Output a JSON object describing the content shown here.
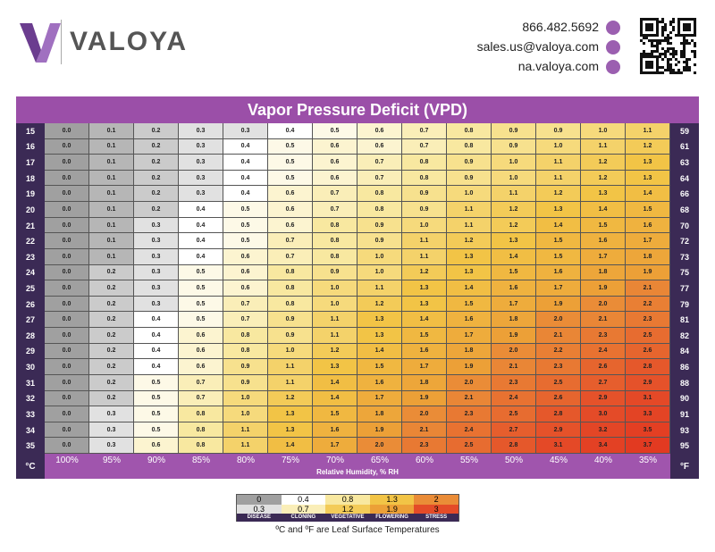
{
  "header": {
    "logo": "VALOYA",
    "phone": "866.482.5692",
    "email": "sales.us@valoya.com",
    "web": "na.valoya.com"
  },
  "table": {
    "title": "Vapor Pressure Deficit (VPD)",
    "corner_left": "°C",
    "corner_right": "°F",
    "x_label": "Relative Humidity, % RH",
    "columns": [
      "100%",
      "95%",
      "90%",
      "85%",
      "80%",
      "75%",
      "70%",
      "65%",
      "60%",
      "55%",
      "50%",
      "45%",
      "40%",
      "35%"
    ],
    "rows": [
      {
        "celsius": "15",
        "fahrenheit": "59",
        "values": [
          "0.0",
          "0.1",
          "0.2",
          "0.3",
          "0.3",
          "0.4",
          "0.5",
          "0.6",
          "0.7",
          "0.8",
          "0.9",
          "0.9",
          "1.0",
          "1.1"
        ]
      },
      {
        "celsius": "16",
        "fahrenheit": "61",
        "values": [
          "0.0",
          "0.1",
          "0.2",
          "0.3",
          "0.4",
          "0.5",
          "0.6",
          "0.6",
          "0.7",
          "0.8",
          "0.9",
          "1.0",
          "1.1",
          "1.2"
        ]
      },
      {
        "celsius": "17",
        "fahrenheit": "63",
        "values": [
          "0.0",
          "0.1",
          "0.2",
          "0.3",
          "0.4",
          "0.5",
          "0.6",
          "0.7",
          "0.8",
          "0.9",
          "1.0",
          "1.1",
          "1.2",
          "1.3"
        ]
      },
      {
        "celsius": "18",
        "fahrenheit": "64",
        "values": [
          "0.0",
          "0.1",
          "0.2",
          "0.3",
          "0.4",
          "0.5",
          "0.6",
          "0.7",
          "0.8",
          "0.9",
          "1.0",
          "1.1",
          "1.2",
          "1.3"
        ]
      },
      {
        "celsius": "19",
        "fahrenheit": "66",
        "values": [
          "0.0",
          "0.1",
          "0.2",
          "0.3",
          "0.4",
          "0.6",
          "0.7",
          "0.8",
          "0.9",
          "1.0",
          "1.1",
          "1.2",
          "1.3",
          "1.4"
        ]
      },
      {
        "celsius": "20",
        "fahrenheit": "68",
        "values": [
          "0.0",
          "0.1",
          "0.2",
          "0.4",
          "0.5",
          "0.6",
          "0.7",
          "0.8",
          "0.9",
          "1.1",
          "1.2",
          "1.3",
          "1.4",
          "1.5"
        ]
      },
      {
        "celsius": "21",
        "fahrenheit": "70",
        "values": [
          "0.0",
          "0.1",
          "0.3",
          "0.4",
          "0.5",
          "0.6",
          "0.8",
          "0.9",
          "1.0",
          "1.1",
          "1.2",
          "1.4",
          "1.5",
          "1.6"
        ]
      },
      {
        "celsius": "22",
        "fahrenheit": "72",
        "values": [
          "0.0",
          "0.1",
          "0.3",
          "0.4",
          "0.5",
          "0.7",
          "0.8",
          "0.9",
          "1.1",
          "1.2",
          "1.3",
          "1.5",
          "1.6",
          "1.7"
        ]
      },
      {
        "celsius": "23",
        "fahrenheit": "73",
        "values": [
          "0.0",
          "0.1",
          "0.3",
          "0.4",
          "0.6",
          "0.7",
          "0.8",
          "1.0",
          "1.1",
          "1.3",
          "1.4",
          "1.5",
          "1.7",
          "1.8"
        ]
      },
      {
        "celsius": "24",
        "fahrenheit": "75",
        "values": [
          "0.0",
          "0.2",
          "0.3",
          "0.5",
          "0.6",
          "0.8",
          "0.9",
          "1.0",
          "1.2",
          "1.3",
          "1.5",
          "1.6",
          "1.8",
          "1.9"
        ]
      },
      {
        "celsius": "25",
        "fahrenheit": "77",
        "values": [
          "0.0",
          "0.2",
          "0.3",
          "0.5",
          "0.6",
          "0.8",
          "1.0",
          "1.1",
          "1.3",
          "1.4",
          "1.6",
          "1.7",
          "1.9",
          "2.1"
        ]
      },
      {
        "celsius": "26",
        "fahrenheit": "79",
        "values": [
          "0.0",
          "0.2",
          "0.3",
          "0.5",
          "0.7",
          "0.8",
          "1.0",
          "1.2",
          "1.3",
          "1.5",
          "1.7",
          "1.9",
          "2.0",
          "2.2"
        ]
      },
      {
        "celsius": "27",
        "fahrenheit": "81",
        "values": [
          "0.0",
          "0.2",
          "0.4",
          "0.5",
          "0.7",
          "0.9",
          "1.1",
          "1.3",
          "1.4",
          "1.6",
          "1.8",
          "2.0",
          "2.1",
          "2.3"
        ]
      },
      {
        "celsius": "28",
        "fahrenheit": "82",
        "values": [
          "0.0",
          "0.2",
          "0.4",
          "0.6",
          "0.8",
          "0.9",
          "1.1",
          "1.3",
          "1.5",
          "1.7",
          "1.9",
          "2.1",
          "2.3",
          "2.5"
        ]
      },
      {
        "celsius": "29",
        "fahrenheit": "84",
        "values": [
          "0.0",
          "0.2",
          "0.4",
          "0.6",
          "0.8",
          "1.0",
          "1.2",
          "1.4",
          "1.6",
          "1.8",
          "2.0",
          "2.2",
          "2.4",
          "2.6"
        ]
      },
      {
        "celsius": "30",
        "fahrenheit": "86",
        "values": [
          "0.0",
          "0.2",
          "0.4",
          "0.6",
          "0.9",
          "1.1",
          "1.3",
          "1.5",
          "1.7",
          "1.9",
          "2.1",
          "2.3",
          "2.6",
          "2.8"
        ]
      },
      {
        "celsius": "31",
        "fahrenheit": "88",
        "values": [
          "0.0",
          "0.2",
          "0.5",
          "0.7",
          "0.9",
          "1.1",
          "1.4",
          "1.6",
          "1.8",
          "2.0",
          "2.3",
          "2.5",
          "2.7",
          "2.9"
        ]
      },
      {
        "celsius": "32",
        "fahrenheit": "90",
        "values": [
          "0.0",
          "0.2",
          "0.5",
          "0.7",
          "1.0",
          "1.2",
          "1.4",
          "1.7",
          "1.9",
          "2.1",
          "2.4",
          "2.6",
          "2.9",
          "3.1"
        ]
      },
      {
        "celsius": "33",
        "fahrenheit": "91",
        "values": [
          "0.0",
          "0.3",
          "0.5",
          "0.8",
          "1.0",
          "1.3",
          "1.5",
          "1.8",
          "2.0",
          "2.3",
          "2.5",
          "2.8",
          "3.0",
          "3.3"
        ]
      },
      {
        "celsius": "34",
        "fahrenheit": "93",
        "values": [
          "0.0",
          "0.3",
          "0.5",
          "0.8",
          "1.1",
          "1.3",
          "1.6",
          "1.9",
          "2.1",
          "2.4",
          "2.7",
          "2.9",
          "3.2",
          "3.5"
        ]
      },
      {
        "celsius": "35",
        "fahrenheit": "95",
        "values": [
          "0.0",
          "0.3",
          "0.6",
          "0.8",
          "1.1",
          "1.4",
          "1.7",
          "2.0",
          "2.3",
          "2.5",
          "2.8",
          "3.1",
          "3.4",
          "3.7"
        ]
      }
    ]
  },
  "legend": [
    {
      "label": "DISEASE",
      "from": "0",
      "to": "0.3"
    },
    {
      "label": "CLONING",
      "from": "0.4",
      "to": "0.7"
    },
    {
      "label": "VEGETATIVE",
      "from": "0.8",
      "to": "1.2"
    },
    {
      "label": "FLOWERING",
      "from": "1.3",
      "to": "1.9"
    },
    {
      "label": "STRESS",
      "from": "2",
      "to": "3"
    }
  ],
  "footnote": "ºC and ºF are Leaf Surface Temperatures"
}
